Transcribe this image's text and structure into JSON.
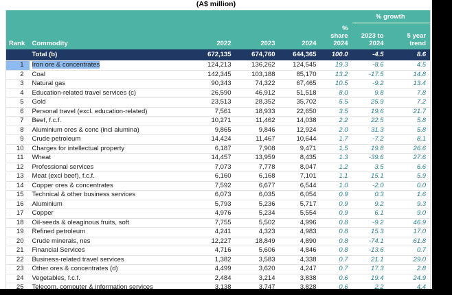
{
  "page": {
    "caption": "(A$ million)"
  },
  "table": {
    "header": {
      "growth_group": "% growth",
      "rank": "Rank",
      "commodity": "Commodity",
      "y2022": "2022",
      "y2023": "2023",
      "y2024": "2024",
      "share": "% share\n2024",
      "growth": "2023 to\n2024",
      "trend": "5 year\ntrend"
    },
    "total": {
      "label": "Total (b)",
      "y2022": "672,135",
      "y2023": "674,760",
      "y2024": "644,365",
      "share": "100.0",
      "growth": "-4.5",
      "trend": "8.6"
    },
    "rows": [
      {
        "rank": "1",
        "commodity": "Iron ore & concentrates",
        "y2022": "124,213",
        "y2023": "136,262",
        "y2024": "124,545",
        "share": "19.3",
        "growth": "-8.6",
        "trend": "4.5",
        "highlighted": true
      },
      {
        "rank": "2",
        "commodity": "Coal",
        "y2022": "142,345",
        "y2023": "103,188",
        "y2024": "85,170",
        "share": "13.2",
        "growth": "-17.5",
        "trend": "14.8"
      },
      {
        "rank": "3",
        "commodity": "Natural gas",
        "y2022": "90,343",
        "y2023": "74,322",
        "y2024": "67,465",
        "share": "10.5",
        "growth": "-9.2",
        "trend": "13.4"
      },
      {
        "rank": "4",
        "commodity": "Education-related travel services (c)",
        "y2022": "26,590",
        "y2023": "46,912",
        "y2024": "51,518",
        "share": "8.0",
        "growth": "9.8",
        "trend": "7.8"
      },
      {
        "rank": "5",
        "commodity": "Gold",
        "y2022": "23,513",
        "y2023": "28,352",
        "y2024": "35,702",
        "share": "5.5",
        "growth": "25.9",
        "trend": "7.2"
      },
      {
        "rank": "6",
        "commodity": "Personal travel (excl. education-related)",
        "y2022": "7,561",
        "y2023": "18,933",
        "y2024": "22,650",
        "share": "3.5",
        "growth": "19.6",
        "trend": "21.7"
      },
      {
        "rank": "7",
        "commodity": "Beef, f.c.f.",
        "y2022": "10,271",
        "y2023": "11,462",
        "y2024": "14,038",
        "share": "2.2",
        "growth": "22.5",
        "trend": "5.8"
      },
      {
        "rank": "8",
        "commodity": "Aluminium ores & conc (incl alumina)",
        "y2022": "9,865",
        "y2023": "9,846",
        "y2024": "12,924",
        "share": "2.0",
        "growth": "31.3",
        "trend": "5.8"
      },
      {
        "rank": "9",
        "commodity": "Crude petroleum",
        "y2022": "14,424",
        "y2023": "11,467",
        "y2024": "10,644",
        "share": "1.7",
        "growth": "-7.2",
        "trend": "8.1"
      },
      {
        "rank": "10",
        "commodity": "Charges for intellectual property",
        "y2022": "6,187",
        "y2023": "7,908",
        "y2024": "9,471",
        "share": "1.5",
        "growth": "19.8",
        "trend": "26.6"
      },
      {
        "rank": "11",
        "commodity": "Wheat",
        "y2022": "14,457",
        "y2023": "13,959",
        "y2024": "8,435",
        "share": "1.3",
        "growth": "-39.6",
        "trend": "27.6"
      },
      {
        "rank": "12",
        "commodity": "Professional services",
        "y2022": "7,073",
        "y2023": "7,778",
        "y2024": "8,047",
        "share": "1.2",
        "growth": "3.5",
        "trend": "6.6"
      },
      {
        "rank": "13",
        "commodity": "Meat (excl beef), f.c.f.",
        "y2022": "6,160",
        "y2023": "6,168",
        "y2024": "7,101",
        "share": "1.1",
        "growth": "15.1",
        "trend": "5.9"
      },
      {
        "rank": "14",
        "commodity": "Copper ores & concentrates",
        "y2022": "7,592",
        "y2023": "6,677",
        "y2024": "6,544",
        "share": "1.0",
        "growth": "-2.0",
        "trend": "0.0"
      },
      {
        "rank": "15",
        "commodity": "Technical & other business services",
        "y2022": "6,073",
        "y2023": "6,035",
        "y2024": "6,054",
        "share": "0.9",
        "growth": "0.3",
        "trend": "1.6"
      },
      {
        "rank": "16",
        "commodity": "Aluminium",
        "y2022": "5,793",
        "y2023": "5,236",
        "y2024": "5,717",
        "share": "0.9",
        "growth": "9.2",
        "trend": "9.3"
      },
      {
        "rank": "17",
        "commodity": "Copper",
        "y2022": "4,976",
        "y2023": "5,234",
        "y2024": "5,554",
        "share": "0.9",
        "growth": "6.1",
        "trend": "9.0"
      },
      {
        "rank": "18",
        "commodity": "Oil-seeds & oleaginous fruits, soft",
        "y2022": "7,755",
        "y2023": "5,502",
        "y2024": "4,996",
        "share": "0.8",
        "growth": "-9.2",
        "trend": "46.9"
      },
      {
        "rank": "19",
        "commodity": "Refined petroleum",
        "y2022": "4,241",
        "y2023": "4,323",
        "y2024": "4,983",
        "share": "0.8",
        "growth": "15.3",
        "trend": "17.0"
      },
      {
        "rank": "20",
        "commodity": "Crude minerals, nes",
        "y2022": "12,227",
        "y2023": "18,849",
        "y2024": "4,890",
        "share": "0.8",
        "growth": "-74.1",
        "trend": "61.8"
      },
      {
        "rank": "21",
        "commodity": "Financial Services",
        "y2022": "4,716",
        "y2023": "5,606",
        "y2024": "4,846",
        "share": "0.8",
        "growth": "-13.6",
        "trend": "0.7"
      },
      {
        "rank": "22",
        "commodity": "Business-related travel services",
        "y2022": "1,382",
        "y2023": "3,583",
        "y2024": "4,338",
        "share": "0.7",
        "growth": "21.1",
        "trend": "29.0"
      },
      {
        "rank": "23",
        "commodity": "Other ores & concentrates (d)",
        "y2022": "4,499",
        "y2023": "3,620",
        "y2024": "4,247",
        "share": "0.7",
        "growth": "17.3",
        "trend": "2.8"
      },
      {
        "rank": "24",
        "commodity": "Vegetables, f.c.f.",
        "y2022": "2,484",
        "y2023": "3,214",
        "y2024": "3,838",
        "share": "0.6",
        "growth": "19.4",
        "trend": "24.9"
      },
      {
        "rank": "25",
        "commodity": "Telecom, computer & information services",
        "y2022": "3,138",
        "y2023": "3,747",
        "y2024": "3,828",
        "share": "0.6",
        "growth": "2.2",
        "trend": "4.4"
      }
    ]
  }
}
